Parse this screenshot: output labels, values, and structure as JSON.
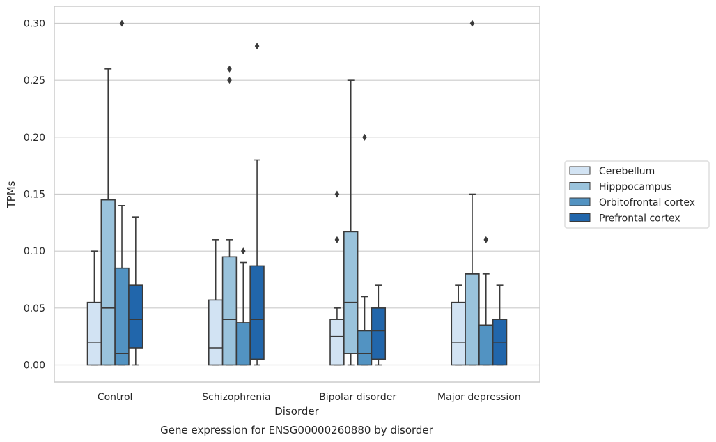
{
  "chart_data": {
    "type": "box",
    "title": "",
    "caption": "Gene expression for ENSG00000260880 by disorder",
    "xlabel": "Disorder",
    "ylabel": "TPMs",
    "ylim": [
      -0.015,
      0.315
    ],
    "yticks": [
      0.0,
      0.05,
      0.1,
      0.15,
      0.2,
      0.25,
      0.3
    ],
    "ytick_labels": [
      "0.00",
      "0.05",
      "0.10",
      "0.15",
      "0.20",
      "0.25",
      "0.30"
    ],
    "grid": "horizontal",
    "legend_position": "right",
    "categories": [
      "Control",
      "Schizophrenia",
      "Bipolar disorder",
      "Major depression"
    ],
    "series": [
      {
        "name": "Cerebellum",
        "color": "#d2e3f3",
        "boxes": [
          {
            "whislo": 0.0,
            "q1": 0.0,
            "med": 0.02,
            "q3": 0.055,
            "whishi": 0.1,
            "fliers": []
          },
          {
            "whislo": 0.0,
            "q1": 0.0,
            "med": 0.015,
            "q3": 0.057,
            "whishi": 0.11,
            "fliers": []
          },
          {
            "whislo": 0.0,
            "q1": 0.0,
            "med": 0.025,
            "q3": 0.04,
            "whishi": 0.05,
            "fliers": [
              0.11,
              0.15
            ]
          },
          {
            "whislo": 0.0,
            "q1": 0.0,
            "med": 0.02,
            "q3": 0.055,
            "whishi": 0.07,
            "fliers": []
          }
        ]
      },
      {
        "name": "Hipppocampus",
        "color": "#9ac3dc",
        "boxes": [
          {
            "whislo": 0.0,
            "q1": 0.0,
            "med": 0.05,
            "q3": 0.145,
            "whishi": 0.26,
            "fliers": []
          },
          {
            "whislo": 0.0,
            "q1": 0.0,
            "med": 0.04,
            "q3": 0.095,
            "whishi": 0.11,
            "fliers": [
              0.25,
              0.26
            ]
          },
          {
            "whislo": 0.0,
            "q1": 0.01,
            "med": 0.055,
            "q3": 0.117,
            "whishi": 0.25,
            "fliers": []
          },
          {
            "whislo": 0.0,
            "q1": 0.0,
            "med": 0.08,
            "q3": 0.08,
            "whishi": 0.15,
            "fliers": [
              0.3
            ]
          }
        ]
      },
      {
        "name": "Orbitofrontal cortex",
        "color": "#5293c2",
        "boxes": [
          {
            "whislo": 0.0,
            "q1": 0.0,
            "med": 0.01,
            "q3": 0.085,
            "whishi": 0.14,
            "fliers": [
              0.3
            ]
          },
          {
            "whislo": 0.0,
            "q1": 0.0,
            "med": 0.037,
            "q3": 0.037,
            "whishi": 0.09,
            "fliers": [
              0.1
            ]
          },
          {
            "whislo": 0.0,
            "q1": 0.0,
            "med": 0.01,
            "q3": 0.03,
            "whishi": 0.06,
            "fliers": [
              0.2
            ]
          },
          {
            "whislo": 0.0,
            "q1": 0.0,
            "med": 0.035,
            "q3": 0.035,
            "whishi": 0.08,
            "fliers": [
              0.11
            ]
          }
        ]
      },
      {
        "name": "Prefrontal cortex",
        "color": "#2166ab",
        "boxes": [
          {
            "whislo": 0.0,
            "q1": 0.015,
            "med": 0.04,
            "q3": 0.07,
            "whishi": 0.13,
            "fliers": []
          },
          {
            "whislo": 0.0,
            "q1": 0.005,
            "med": 0.04,
            "q3": 0.087,
            "whishi": 0.18,
            "fliers": [
              0.28
            ]
          },
          {
            "whislo": 0.0,
            "q1": 0.005,
            "med": 0.03,
            "q3": 0.05,
            "whishi": 0.07,
            "fliers": []
          },
          {
            "whislo": 0.0,
            "q1": 0.0,
            "med": 0.02,
            "q3": 0.04,
            "whishi": 0.07,
            "fliers": []
          }
        ]
      }
    ]
  }
}
